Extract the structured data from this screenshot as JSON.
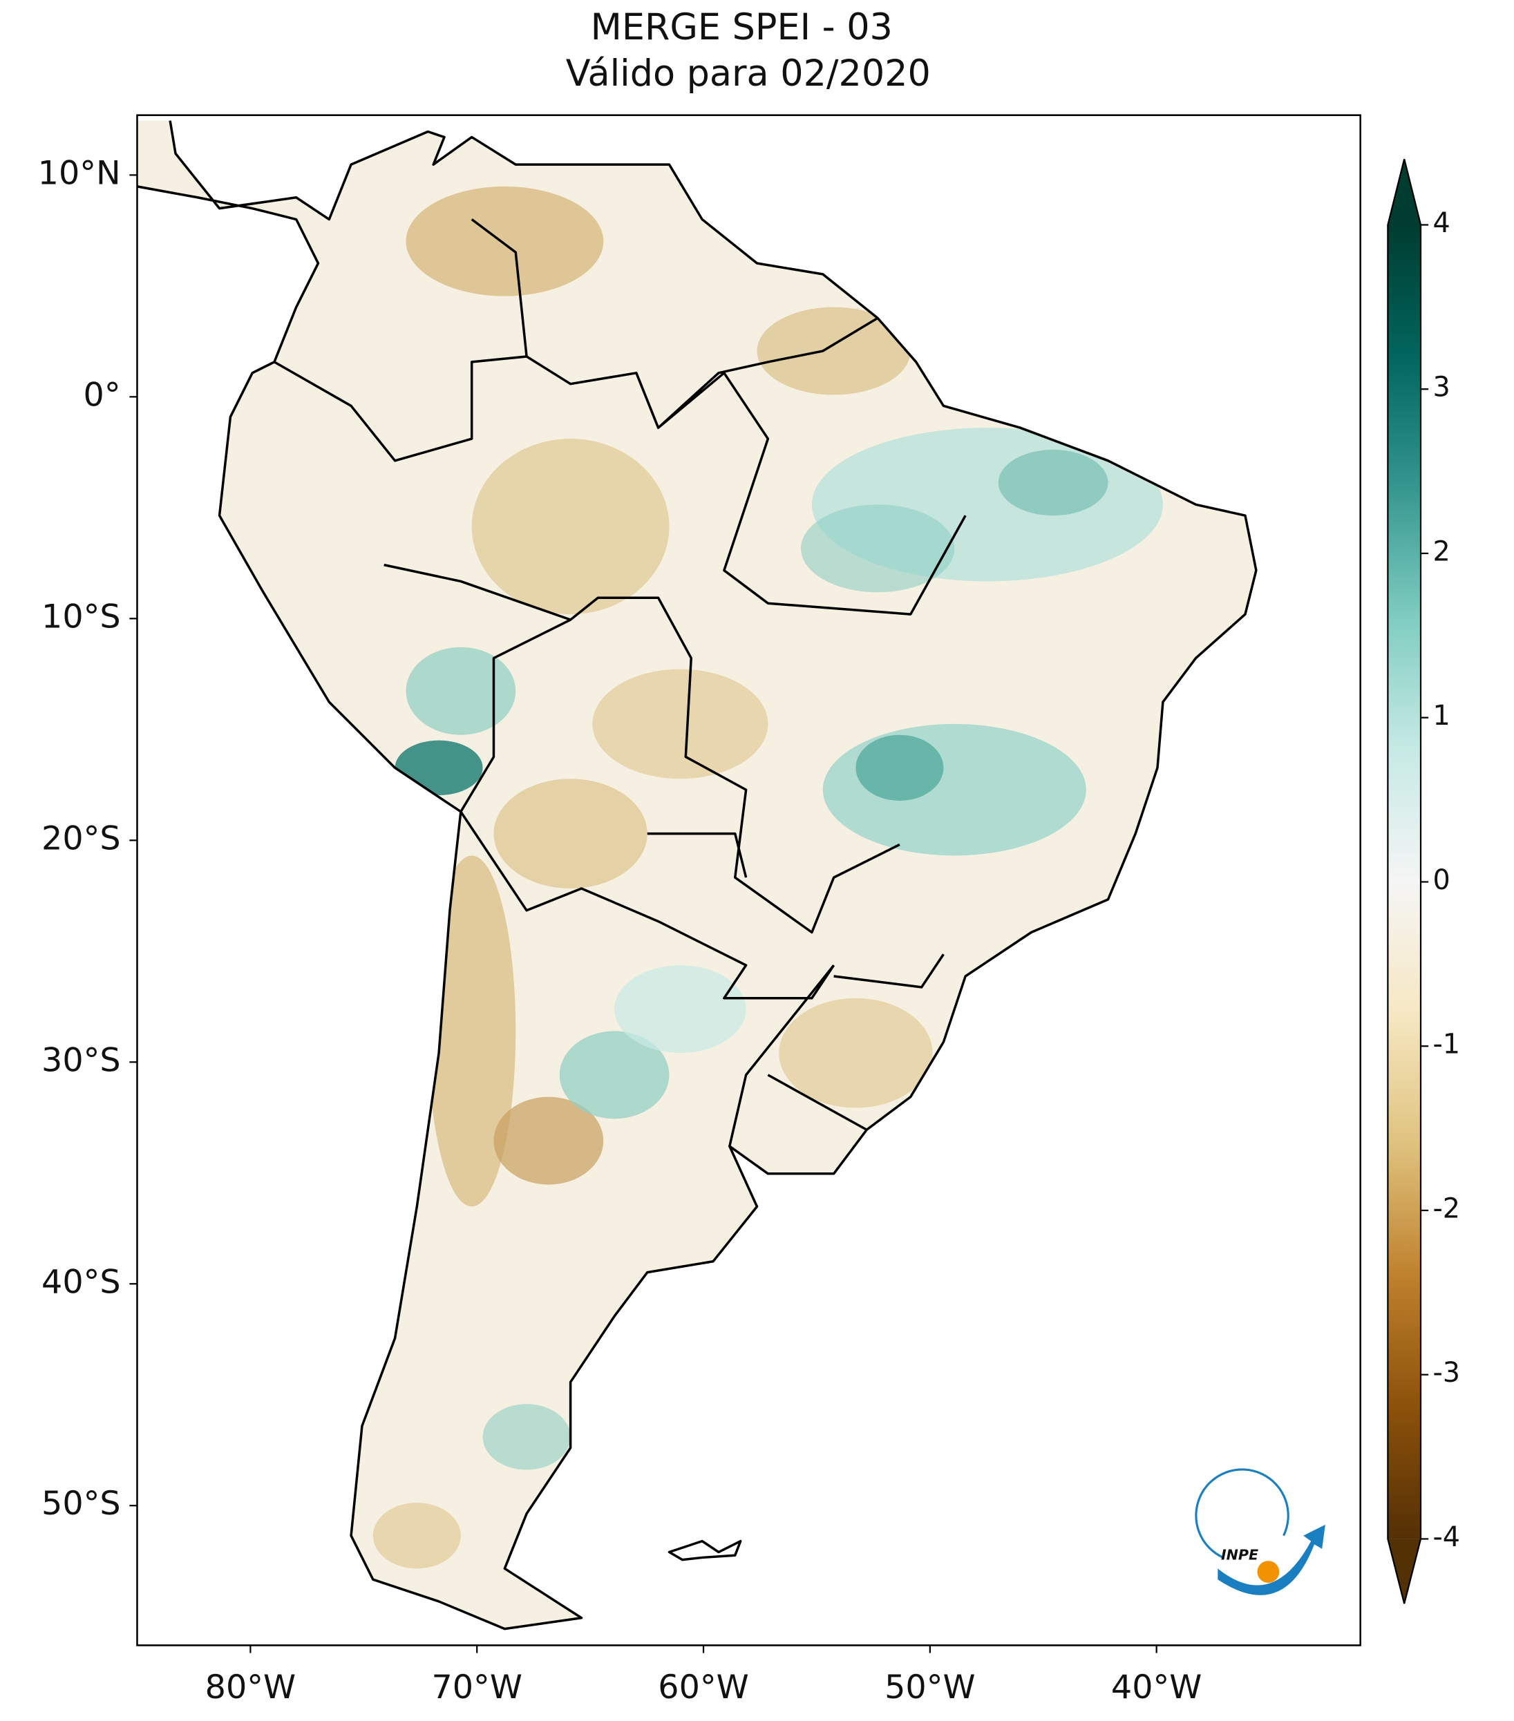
{
  "title": "MERGE   SPEI - 03",
  "subtitle": "Válido para 02/2020",
  "map": {
    "xlim": [
      -85,
      -31
    ],
    "ylim": [
      -56.3,
      12.7
    ],
    "xticks": [
      {
        "value": -80,
        "label": "80°W"
      },
      {
        "value": -70,
        "label": "70°W"
      },
      {
        "value": -60,
        "label": "60°W"
      },
      {
        "value": -50,
        "label": "50°W"
      },
      {
        "value": -40,
        "label": "40°W"
      }
    ],
    "yticks": [
      {
        "value": 10,
        "label": "10°N"
      },
      {
        "value": 0,
        "label": "0°"
      },
      {
        "value": -10,
        "label": "10°S"
      },
      {
        "value": -20,
        "label": "20°S"
      },
      {
        "value": -30,
        "label": "30°S"
      },
      {
        "value": -40,
        "label": "40°S"
      },
      {
        "value": -50,
        "label": "50°S"
      }
    ]
  },
  "colorbar": {
    "lim": [
      -4,
      4
    ],
    "ticks": [
      -4,
      -3,
      -2,
      -1,
      0,
      1,
      2,
      3,
      4
    ],
    "colors": [
      "#543005",
      "#8c510a",
      "#bf812d",
      "#dfc27d",
      "#f6e8c3",
      "#f5f5f5",
      "#c7eae5",
      "#80cdc1",
      "#35978f",
      "#01665e",
      "#003c30"
    ]
  },
  "logo": "INPE"
}
